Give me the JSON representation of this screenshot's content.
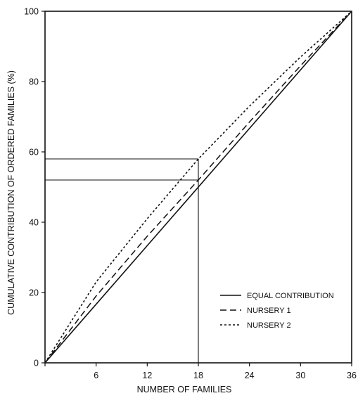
{
  "chart_data": {
    "type": "line",
    "title": "",
    "xlabel": "NUMBER OF FAMILIES",
    "ylabel": "CUMULATIVE CONTRIBUTION OF ORDERED FAMILIES (%)",
    "xlim": [
      0,
      36
    ],
    "ylim": [
      0,
      100
    ],
    "x_ticks": [
      0,
      6,
      12,
      18,
      24,
      30,
      36
    ],
    "x_tick_labels": [
      "",
      "6",
      "12",
      "18",
      "24",
      "30",
      "36"
    ],
    "y_ticks": [
      0,
      20,
      40,
      60,
      80,
      100
    ],
    "y_tick_labels": [
      "0",
      "20",
      "40",
      "60",
      "80",
      "100"
    ],
    "grid": false,
    "legend_position": "bottom-right",
    "series": [
      {
        "name": "EQUAL CONTRIBUTION",
        "style": "solid",
        "x": [
          0,
          36
        ],
        "y": [
          0,
          100
        ]
      },
      {
        "name": "NURSERY 1",
        "style": "dashed",
        "x": [
          0,
          6,
          12,
          18,
          24,
          30,
          36
        ],
        "y": [
          0,
          19,
          36,
          52,
          68.5,
          84.5,
          100
        ]
      },
      {
        "name": "NURSERY 2",
        "style": "dotted",
        "x": [
          0,
          6,
          12,
          18,
          24,
          30,
          36
        ],
        "y": [
          0,
          23,
          41,
          58,
          73,
          87,
          100
        ]
      }
    ],
    "reference_lines": {
      "x": 18,
      "y": [
        52,
        58
      ]
    }
  },
  "colors": {
    "ink": "#111111",
    "background": "#ffffff"
  }
}
